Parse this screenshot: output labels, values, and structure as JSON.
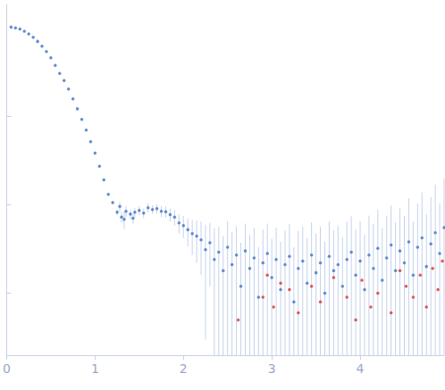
{
  "chart_data": {
    "type": "scatter",
    "log": "y",
    "grid": false,
    "tick_labels": "x",
    "xlim": [
      0,
      4.95
    ],
    "xticks": [
      0,
      1,
      2,
      3,
      4
    ],
    "ylim": [
      0.0002,
      1.8
    ],
    "yticks": [
      0.001,
      0.01,
      0.1
    ],
    "series": [
      {
        "color": "#4472c4",
        "marker": "circle",
        "x": [
          0.05,
          0.1,
          0.15,
          0.2,
          0.25,
          0.3,
          0.35,
          0.4,
          0.45,
          0.5,
          0.55,
          0.6,
          0.65,
          0.7,
          0.75,
          0.8,
          0.85,
          0.9,
          0.95,
          1.0,
          1.05,
          1.1,
          1.15,
          1.2,
          1.25,
          1.28,
          1.3,
          1.33,
          1.35,
          1.4,
          1.43,
          1.45,
          1.5,
          1.55,
          1.6,
          1.65,
          1.7,
          1.75,
          1.8,
          1.85,
          1.9,
          1.95,
          2.0,
          2.05,
          2.1,
          2.15,
          2.2,
          2.25,
          2.3,
          2.35,
          2.4,
          2.45,
          2.5,
          2.55,
          2.6,
          2.65,
          2.7,
          2.75,
          2.8,
          2.85,
          2.9,
          2.95,
          3.0,
          3.05,
          3.1,
          3.15,
          3.2,
          3.25,
          3.3,
          3.35,
          3.4,
          3.45,
          3.5,
          3.55,
          3.6,
          3.65,
          3.7,
          3.75,
          3.8,
          3.85,
          3.9,
          3.95,
          4.0,
          4.05,
          4.1,
          4.15,
          4.2,
          4.25,
          4.3,
          4.35,
          4.4,
          4.45,
          4.5,
          4.55,
          4.6,
          4.65,
          4.7,
          4.75,
          4.8,
          4.85,
          4.9,
          4.95
        ],
        "values": [
          1.0,
          0.98,
          0.95,
          0.9,
          0.84,
          0.77,
          0.69,
          0.61,
          0.53,
          0.45,
          0.37,
          0.3,
          0.25,
          0.2,
          0.155,
          0.12,
          0.091,
          0.069,
          0.051,
          0.038,
          0.027,
          0.019,
          0.013,
          0.0105,
          0.0082,
          0.0095,
          0.0072,
          0.0068,
          0.0084,
          0.0078,
          0.007,
          0.0082,
          0.0086,
          0.008,
          0.0092,
          0.0088,
          0.009,
          0.0084,
          0.0083,
          0.0077,
          0.0072,
          0.0062,
          0.0058,
          0.0052,
          0.0047,
          0.0044,
          0.004,
          0.0031,
          0.0037,
          0.0024,
          0.0029,
          0.0018,
          0.0033,
          0.0021,
          0.0027,
          0.0012,
          0.003,
          0.0019,
          0.0025,
          0.0009,
          0.0022,
          0.0028,
          0.0015,
          0.0024,
          0.0011,
          0.0021,
          0.0026,
          0.0008,
          0.0019,
          0.0023,
          0.0013,
          0.0027,
          0.0017,
          0.0022,
          0.001,
          0.0026,
          0.0018,
          0.0021,
          0.0012,
          0.0024,
          0.0029,
          0.0016,
          0.0023,
          0.0011,
          0.0027,
          0.0019,
          0.0032,
          0.0014,
          0.0025,
          0.0035,
          0.0018,
          0.003,
          0.0022,
          0.0038,
          0.0016,
          0.0033,
          0.0042,
          0.002,
          0.0036,
          0.0048,
          0.0028,
          0.0055
        ],
        "errors": [
          0.01,
          0.01,
          0.01,
          0.01,
          0.01,
          0.01,
          0.01,
          0.01,
          0.008,
          0.007,
          0.006,
          0.005,
          0.004,
          0.003,
          0.0025,
          0.002,
          0.0015,
          0.0012,
          0.001,
          0.0008,
          0.0006,
          0.0005,
          0.0004,
          0.0004,
          0.0006,
          0.0012,
          0.001,
          0.0015,
          0.0012,
          0.001,
          0.0009,
          0.001,
          0.001,
          0.001,
          0.0011,
          0.001,
          0.0011,
          0.0012,
          0.0012,
          0.0013,
          0.0014,
          0.0015,
          0.0016,
          0.0018,
          0.002,
          0.0022,
          0.0024,
          0.0028,
          0.0025,
          0.003,
          0.0027,
          0.0026,
          0.0032,
          0.0028,
          0.003,
          0.0025,
          0.0031,
          0.0027,
          0.0029,
          0.0024,
          0.003,
          0.0033,
          0.0026,
          0.0031,
          0.0027,
          0.003,
          0.0034,
          0.0025,
          0.0031,
          0.0033,
          0.0029,
          0.0036,
          0.003,
          0.0034,
          0.0028,
          0.0038,
          0.0033,
          0.0036,
          0.0031,
          0.004,
          0.0045,
          0.0036,
          0.0042,
          0.0035,
          0.0048,
          0.0041,
          0.0055,
          0.004,
          0.005,
          0.0062,
          0.0045,
          0.006,
          0.0052,
          0.008,
          0.0048,
          0.007,
          0.0095,
          0.0058,
          0.0085,
          0.012,
          0.0075,
          0.014
        ]
      },
      {
        "color": "#e03030",
        "marker": "circle",
        "x": [
          2.62,
          2.9,
          2.95,
          3.02,
          3.1,
          3.2,
          3.3,
          3.45,
          3.55,
          3.7,
          3.85,
          3.95,
          4.02,
          4.12,
          4.2,
          4.35,
          4.45,
          4.52,
          4.6,
          4.68,
          4.75,
          4.82,
          4.88,
          4.93
        ],
        "values": [
          0.0005,
          0.0009,
          0.0016,
          0.0007,
          0.0013,
          0.0011,
          0.0006,
          0.0012,
          0.0008,
          0.0015,
          0.0009,
          0.0005,
          0.0014,
          0.0007,
          0.001,
          0.0006,
          0.0018,
          0.0012,
          0.0009,
          0.0016,
          0.0007,
          0.0019,
          0.0011,
          0.0023
        ]
      }
    ]
  }
}
